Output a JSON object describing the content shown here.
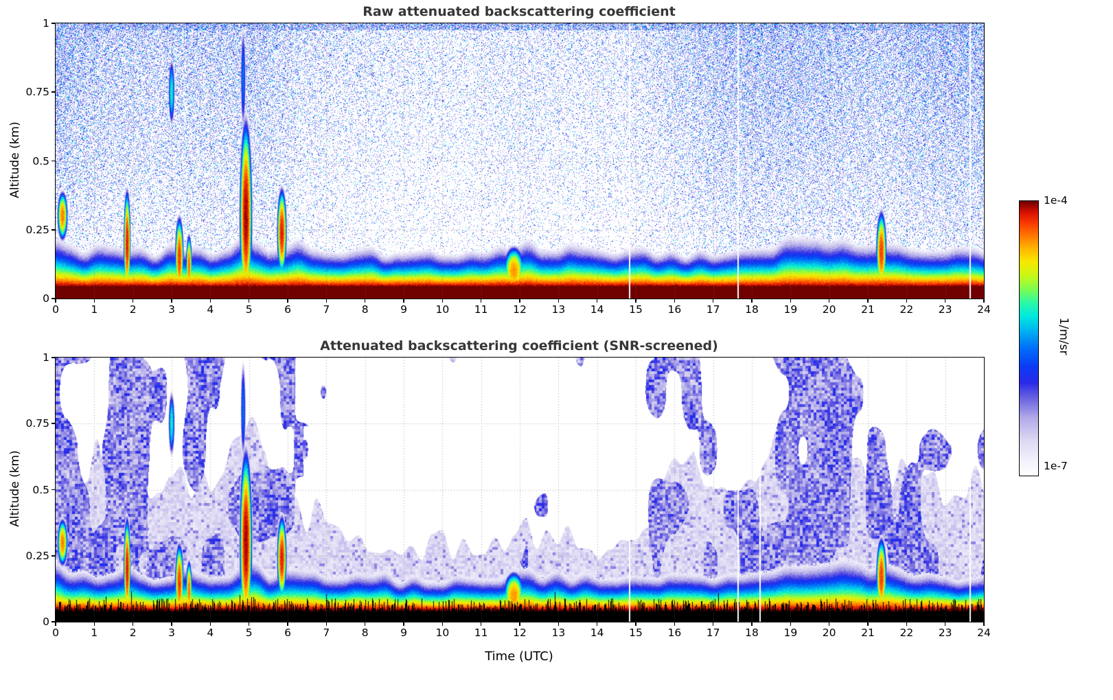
{
  "figure": {
    "background": "#ffffff",
    "x_axis_label": "Time (UTC)",
    "colorbar": {
      "top_label": "1e-4",
      "bottom_label": "1e-7",
      "units_label": "1/m/sr",
      "scale": "log10",
      "log_range": [
        -7,
        -4
      ]
    }
  },
  "colormap_stops": [
    [
      0.0,
      "#ffffff"
    ],
    [
      0.05,
      "#f5f3fc"
    ],
    [
      0.13,
      "#ddd8f3"
    ],
    [
      0.21,
      "#b3ace9"
    ],
    [
      0.28,
      "#6e66e0"
    ],
    [
      0.34,
      "#2a2ae8"
    ],
    [
      0.4,
      "#0b3cf5"
    ],
    [
      0.47,
      "#0073f8"
    ],
    [
      0.53,
      "#00b4f0"
    ],
    [
      0.58,
      "#00e8e0"
    ],
    [
      0.63,
      "#2cf8a8"
    ],
    [
      0.68,
      "#7dfc50"
    ],
    [
      0.73,
      "#c8f816"
    ],
    [
      0.78,
      "#f8e800"
    ],
    [
      0.83,
      "#ffb400"
    ],
    [
      0.88,
      "#ff7000"
    ],
    [
      0.92,
      "#f83c00"
    ],
    [
      0.96,
      "#d81000"
    ],
    [
      1.0,
      "#700000"
    ]
  ],
  "chart_common": {
    "time_step_hours": 0.5,
    "layer_scale_km": [
      0.17,
      0.15,
      0.14,
      0.14,
      0.15,
      0.13,
      0.14,
      0.15,
      0.13,
      0.14,
      0.18,
      0.15,
      0.16,
      0.14,
      0.13,
      0.13,
      0.13,
      0.13,
      0.12,
      0.12,
      0.12,
      0.12,
      0.12,
      0.13,
      0.16,
      0.15,
      0.15,
      0.14,
      0.14,
      0.13,
      0.14,
      0.14,
      0.13,
      0.13,
      0.13,
      0.14,
      0.15,
      0.16,
      0.17,
      0.17,
      0.18,
      0.17,
      0.16,
      0.17,
      0.14,
      0.13,
      0.13,
      0.13,
      0.13
    ],
    "plumes": [
      {
        "t": 0.18,
        "w": 0.12,
        "alt": 0.3,
        "h": 0.08,
        "peak": -4.4
      },
      {
        "t": 1.85,
        "w": 0.08,
        "alt": 0.2,
        "h": 0.17,
        "peak": -4.15
      },
      {
        "t": 3.2,
        "w": 0.1,
        "alt": 0.15,
        "h": 0.13,
        "peak": -4.25
      },
      {
        "t": 3.45,
        "w": 0.07,
        "alt": 0.12,
        "h": 0.1,
        "peak": -4.35
      },
      {
        "t": 4.92,
        "w": 0.14,
        "alt": 0.3,
        "h": 0.3,
        "peak": -4.05
      },
      {
        "t": 5.85,
        "w": 0.11,
        "alt": 0.24,
        "h": 0.14,
        "peak": -4.15
      },
      {
        "t": 11.85,
        "w": 0.25,
        "alt": 0.1,
        "h": 0.08,
        "peak": -4.45
      },
      {
        "t": 21.35,
        "w": 0.12,
        "alt": 0.17,
        "h": 0.13,
        "peak": -4.25
      },
      {
        "t": 3.0,
        "w": 0.08,
        "alt": 0.75,
        "h": 0.12,
        "peak": -5.2
      },
      {
        "t": 4.85,
        "w": 0.07,
        "alt": 0.8,
        "h": 0.2,
        "peak": -5.6
      }
    ]
  },
  "chart_data": [
    {
      "type": "heatmap",
      "title": "Raw attenuated backscattering coefficient",
      "xlabel": "Time (UTC)",
      "ylabel": "Altitude (km)",
      "xlim": [
        0,
        24
      ],
      "ylim": [
        0,
        1
      ],
      "xticks": [
        0,
        1,
        2,
        3,
        4,
        5,
        6,
        7,
        8,
        9,
        10,
        11,
        12,
        13,
        14,
        15,
        16,
        17,
        18,
        19,
        20,
        21,
        22,
        23,
        24
      ],
      "xtick_labels": [
        "0",
        "1",
        "2",
        "3",
        "4",
        "5",
        "6",
        "7",
        "8",
        "9",
        "10",
        "11",
        "12",
        "13",
        "14",
        "15",
        "16",
        "17",
        "18",
        "19",
        "20",
        "21",
        "22",
        "23",
        "24"
      ],
      "yticks": [
        0,
        0.25,
        0.5,
        0.75,
        1
      ],
      "ytick_labels": [
        "0",
        "0.25",
        "0.5",
        "0.75",
        "1"
      ],
      "value_scale": "log10",
      "value_range": [
        "1e-7",
        "1e-4"
      ],
      "units": "1/m/sr",
      "grid": "dotted",
      "missing_data_times": [
        14.83,
        17.63,
        23.62
      ],
      "field_model": {
        "style": "raw",
        "surface_km": 0.045,
        "upper_speckle_density": [
          0.8,
          0.6,
          0.55,
          0.5,
          0.5,
          0.45,
          0.5,
          0.5,
          0.5,
          0.5,
          0.55,
          0.5,
          0.4,
          0.32,
          0.3,
          0.28,
          0.27,
          0.25,
          0.23,
          0.22,
          0.22,
          0.22,
          0.24,
          0.26,
          0.28,
          0.27,
          0.26,
          0.25,
          0.25,
          0.25,
          0.3,
          0.35,
          0.42,
          0.48,
          0.55,
          0.6,
          0.62,
          0.63,
          0.62,
          0.6,
          0.58,
          0.55,
          0.52,
          0.5,
          0.58,
          0.62,
          0.65,
          0.68,
          0.7
        ]
      }
    },
    {
      "type": "heatmap",
      "title": "Attenuated backscattering coefficient (SNR-screened)",
      "xlabel": "Time (UTC)",
      "ylabel": "Altitude (km)",
      "xlim": [
        0,
        24
      ],
      "ylim": [
        0,
        1
      ],
      "xticks": [
        0,
        1,
        2,
        3,
        4,
        5,
        6,
        7,
        8,
        9,
        10,
        11,
        12,
        13,
        14,
        15,
        16,
        17,
        18,
        19,
        20,
        21,
        22,
        23,
        24
      ],
      "xtick_labels": [
        "0",
        "1",
        "2",
        "3",
        "4",
        "5",
        "6",
        "7",
        "8",
        "9",
        "10",
        "11",
        "12",
        "13",
        "14",
        "15",
        "16",
        "17",
        "18",
        "19",
        "20",
        "21",
        "22",
        "23",
        "24"
      ],
      "yticks": [
        0,
        0.25,
        0.5,
        0.75,
        1
      ],
      "ytick_labels": [
        "0",
        "0.25",
        "0.5",
        "0.75",
        "1"
      ],
      "value_scale": "log10",
      "value_range": [
        "1e-7",
        "1e-4"
      ],
      "units": "1/m/sr",
      "grid": "dotted",
      "missing_data_times": [
        14.83,
        17.63,
        18.2,
        23.62
      ],
      "field_model": {
        "style": "screened",
        "surface_km": 0.045,
        "black_mask": true,
        "lavender_top_km": [
          0.5,
          0.55,
          0.6,
          0.55,
          0.6,
          0.55,
          0.5,
          0.48,
          0.5,
          0.6,
          0.65,
          0.55,
          0.45,
          0.4,
          0.36,
          0.33,
          0.32,
          0.3,
          0.3,
          0.29,
          0.29,
          0.28,
          0.28,
          0.3,
          0.33,
          0.31,
          0.3,
          0.29,
          0.28,
          0.27,
          0.3,
          0.45,
          0.55,
          0.6,
          0.5,
          0.45,
          0.55,
          0.6,
          0.62,
          0.6,
          0.58,
          0.55,
          0.5,
          0.55,
          0.5,
          0.48,
          0.48,
          0.5,
          0.5
        ],
        "blue_patch_density": [
          0.8,
          0.6,
          0.45,
          0.7,
          0.8,
          0.4,
          0.6,
          0.55,
          0.6,
          0.75,
          0.8,
          0.6,
          0.35,
          0.25,
          0.2,
          0.3,
          0.35,
          0.3,
          0.35,
          0.35,
          0.3,
          0.3,
          0.28,
          0.3,
          0.3,
          0.35,
          0.3,
          0.35,
          0.3,
          0.12,
          0.15,
          0.55,
          0.7,
          0.6,
          0.3,
          0.35,
          0.5,
          0.6,
          0.7,
          0.65,
          0.6,
          0.65,
          0.6,
          0.5,
          0.45,
          0.4,
          0.45,
          0.4,
          0.45
        ]
      }
    }
  ]
}
